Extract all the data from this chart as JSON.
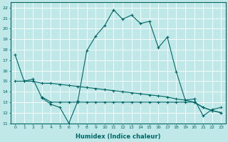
{
  "title": "",
  "xlabel": "Humidex (Indice chaleur)",
  "bg_color": "#c0e8e8",
  "line_color": "#006666",
  "grid_color": "#ffffff",
  "xlim": [
    -0.5,
    23.5
  ],
  "ylim": [
    11,
    22.5
  ],
  "yticks": [
    11,
    12,
    13,
    14,
    15,
    16,
    17,
    18,
    19,
    20,
    21,
    22
  ],
  "xticks": [
    0,
    1,
    2,
    3,
    4,
    5,
    6,
    7,
    8,
    9,
    10,
    11,
    12,
    13,
    14,
    15,
    16,
    17,
    18,
    19,
    20,
    21,
    22,
    23
  ],
  "line1_x": [
    0,
    1,
    2,
    3,
    4,
    5,
    6,
    7,
    8,
    9,
    10,
    11,
    12,
    13,
    14,
    15,
    16,
    17,
    18,
    19,
    20,
    21,
    22,
    23
  ],
  "line1_y": [
    17.5,
    15.0,
    15.2,
    13.4,
    12.8,
    12.5,
    11.0,
    13.1,
    17.9,
    19.3,
    20.3,
    21.8,
    20.9,
    21.3,
    20.5,
    20.7,
    18.2,
    19.2,
    15.9,
    13.2,
    13.3,
    11.7,
    12.3,
    12.5
  ],
  "line2_x": [
    0,
    1,
    2,
    3,
    4,
    5,
    6,
    7,
    8,
    9,
    10,
    11,
    12,
    13,
    14,
    15,
    16,
    17,
    18,
    19,
    20,
    21,
    22,
    23
  ],
  "line2_y": [
    15.0,
    15.0,
    15.0,
    14.8,
    14.8,
    14.7,
    14.6,
    14.5,
    14.4,
    14.3,
    14.2,
    14.1,
    14.0,
    13.9,
    13.8,
    13.7,
    13.6,
    13.5,
    13.3,
    13.2,
    13.0,
    12.5,
    12.2,
    12.0
  ],
  "line3_x": [
    3,
    4,
    5,
    6,
    7,
    8,
    9,
    10,
    11,
    12,
    13,
    14,
    15,
    16,
    17,
    18,
    19,
    20,
    21,
    22,
    23
  ],
  "line3_y": [
    13.5,
    13.0,
    13.0,
    13.0,
    13.0,
    13.0,
    13.0,
    13.0,
    13.0,
    13.0,
    13.0,
    13.0,
    13.0,
    13.0,
    13.0,
    13.0,
    13.0,
    13.0,
    12.5,
    12.2,
    12.0
  ]
}
